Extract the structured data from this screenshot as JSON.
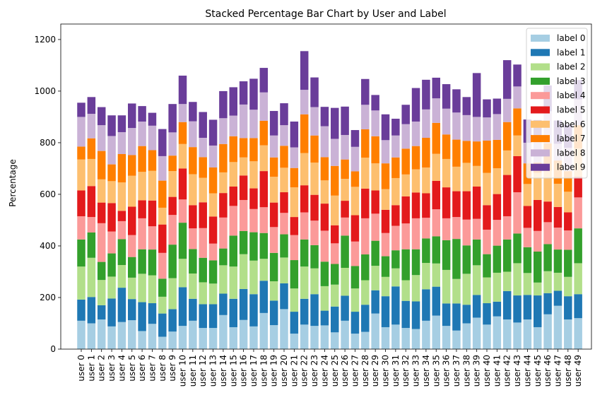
{
  "chart_data": {
    "type": "bar",
    "stacked": true,
    "title": "Stacked Percentage Bar Chart by User and Label",
    "xlabel": "",
    "ylabel": "Percentage",
    "ylim": [
      0,
      1260
    ],
    "yticks": [
      0,
      200,
      400,
      600,
      800,
      1000,
      1200
    ],
    "grid": false,
    "legend_position": "top-right",
    "categories": [
      "user 0",
      "user 1",
      "user 2",
      "user 3",
      "user 4",
      "user 5",
      "user 6",
      "user 7",
      "user 8",
      "user 9",
      "user 10",
      "user 11",
      "user 12",
      "user 13",
      "user 14",
      "user 15",
      "user 16",
      "user 17",
      "user 18",
      "user 19",
      "user 20",
      "user 21",
      "user 22",
      "user 23",
      "user 24",
      "user 25",
      "user 26",
      "user 27",
      "user 28",
      "user 29",
      "user 30",
      "user 31",
      "user 32",
      "user 33",
      "user 34",
      "user 35",
      "user 36",
      "user 37",
      "user 38",
      "user 39",
      "user 40",
      "user 41",
      "user 42",
      "user 43",
      "user 44",
      "user 45",
      "user 46",
      "user 47",
      "user 48",
      "user 49"
    ],
    "series": [
      {
        "name": "label 0",
        "color": "#a6cee3",
        "values": [
          110,
          100,
          115,
          88,
          105,
          112,
          70,
          98,
          48,
          68,
          90,
          110,
          82,
          82,
          132,
          85,
          113,
          88,
          140,
          93,
          155,
          60,
          95,
          90,
          92,
          65,
          110,
          60,
          67,
          138,
          85,
          95,
          82,
          78,
          110,
          130,
          90,
          72,
          100,
          122,
          95,
          127,
          115,
          103,
          115,
          85,
          135,
          168,
          115,
          120
        ]
      },
      {
        "name": "label 1",
        "color": "#1f78b4",
        "values": [
          82,
          102,
          55,
          108,
          133,
          82,
          112,
          80,
          90,
          87,
          150,
          85,
          92,
          92,
          83,
          110,
          120,
          125,
          125,
          95,
          100,
          85,
          100,
          123,
          57,
          100,
          97,
          85,
          105,
          90,
          120,
          148,
          105,
          107,
          122,
          112,
          87,
          105,
          72,
          88,
          83,
          57,
          110,
          105,
          95,
          123,
          82,
          58,
          90,
          93
        ]
      },
      {
        "name": "label 2",
        "color": "#b2df8a",
        "values": [
          128,
          152,
          98,
          85,
          88,
          83,
          110,
          108,
          65,
          120,
          110,
          98,
          85,
          80,
          110,
          125,
          135,
          130,
          85,
          75,
          100,
          90,
          125,
          100,
          95,
          85,
          108,
          90,
          95,
          95,
          75,
          70,
          80,
          102,
          102,
          90,
          130,
          95,
          120,
          115,
          100,
          112,
          75,
          125,
          85,
          50,
          85,
          70,
          75,
          120
        ]
      },
      {
        "name": "label 3",
        "color": "#33a02c",
        "values": [
          105,
          98,
          70,
          90,
          100,
          80,
          95,
          100,
          70,
          130,
          140,
          95,
          95,
          90,
          65,
          120,
          90,
          110,
          100,
          110,
          90,
          110,
          105,
          90,
          95,
          80,
          125,
          87,
          100,
          97,
          80,
          70,
          120,
          100,
          95,
          105,
          115,
          155,
          110,
          100,
          90,
          105,
          125,
          115,
          100,
          120,
          105,
          90,
          105,
          135
        ]
      },
      {
        "name": "label 4",
        "color": "#fb9a99",
        "values": [
          90,
          60,
          150,
          85,
          70,
          85,
          120,
          90,
          100,
          115,
          90,
          80,
          115,
          65,
          120,
          115,
          120,
          90,
          100,
          100,
          83,
          97,
          105,
          95,
          120,
          80,
          70,
          95,
          140,
          105,
          90,
          95,
          100,
          120,
          80,
          105,
          85,
          85,
          100,
          80,
          95,
          100,
          90,
          160,
          75,
          80,
          85,
          85,
          75,
          120
        ]
      },
      {
        "name": "label 5",
        "color": "#e31a1c",
        "values": [
          100,
          120,
          80,
          110,
          40,
          110,
          70,
          100,
          110,
          70,
          120,
          90,
          100,
          105,
          95,
          75,
          95,
          80,
          140,
          95,
          80,
          70,
          105,
          100,
          105,
          70,
          65,
          102,
          115,
          90,
          90,
          80,
          105,
          100,
          95,
          110,
          120,
          100,
          110,
          125,
          95,
          100,
          160,
          140,
          85,
          120,
          80,
          80,
          70,
          80
        ]
      },
      {
        "name": "label 6",
        "color": "#fdbf6f",
        "values": [
          120,
          105,
          90,
          85,
          110,
          120,
          110,
          115,
          65,
          100,
          95,
          120,
          95,
          90,
          80,
          95,
          70,
          105,
          100,
          100,
          95,
          115,
          125,
          125,
          90,
          115,
          85,
          110,
          120,
          105,
          80,
          105,
          85,
          90,
          100,
          105,
          110,
          95,
          110,
          80,
          125,
          100,
          95,
          80,
          85,
          105,
          120,
          90,
          80,
          110
        ]
      },
      {
        "name": "label 7",
        "color": "#ff7f00",
        "values": [
          50,
          80,
          110,
          65,
          110,
          80,
          100,
          80,
          105,
          60,
          85,
          105,
          80,
          100,
          110,
          100,
          75,
          90,
          95,
          75,
          85,
          75,
          150,
          105,
          90,
          115,
          75,
          60,
          110,
          105,
          100,
          80,
          100,
          90,
          115,
          120,
          95,
          105,
          85,
          95,
          125,
          110,
          110,
          105,
          80,
          40,
          105,
          90,
          80,
          90
        ]
      },
      {
        "name": "label 8",
        "color": "#cab2d6",
        "values": [
          115,
          95,
          100,
          110,
          85,
          105,
          95,
          95,
          95,
          90,
          70,
          100,
          75,
          85,
          100,
          80,
          130,
          110,
          110,
          85,
          80,
          80,
          95,
          110,
          120,
          105,
          95,
          95,
          95,
          100,
          90,
          85,
          95,
          95,
          110,
          95,
          100,
          105,
          100,
          95,
          90,
          100,
          90,
          85,
          80,
          95,
          125,
          65,
          90,
          100
        ]
      },
      {
        "name": "label 9",
        "color": "#6a3d9a",
        "values": [
          55,
          65,
          70,
          80,
          65,
          95,
          60,
          50,
          105,
          110,
          110,
          75,
          100,
          100,
          105,
          110,
          90,
          120,
          95,
          95,
          85,
          100,
          150,
          115,
          75,
          120,
          110,
          65,
          100,
          60,
          100,
          65,
          75,
          130,
          115,
          80,
          95,
          90,
          70,
          170,
          70,
          60,
          150,
          85,
          90,
          70,
          100,
          90,
          90,
          75
        ]
      }
    ]
  }
}
